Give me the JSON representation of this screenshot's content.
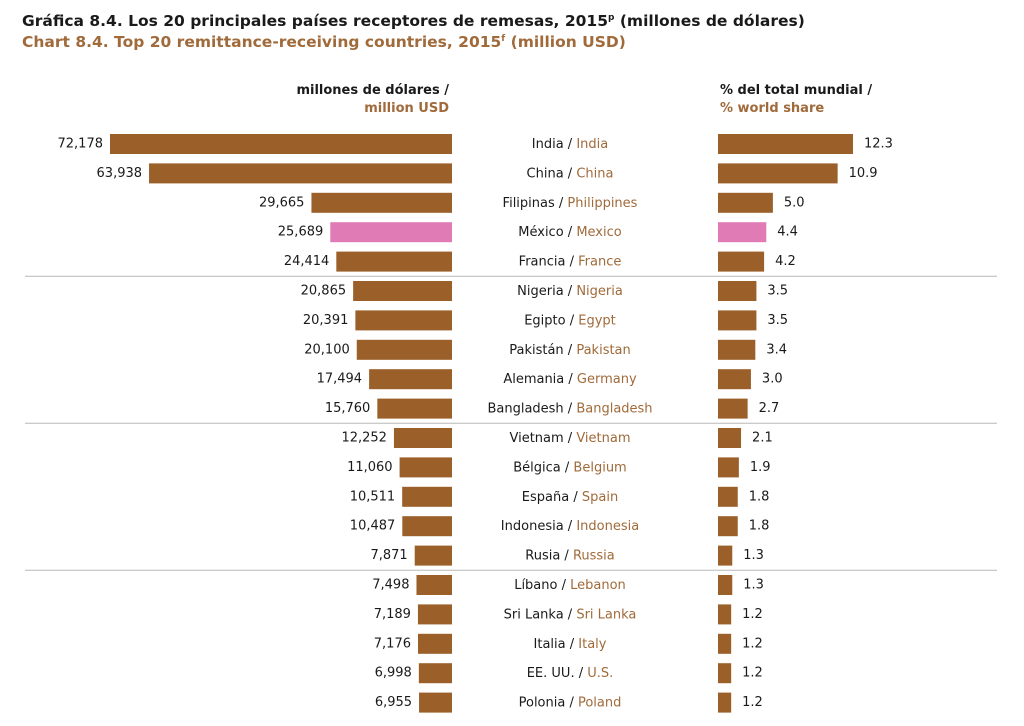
{
  "title_es": "Gráfica 8.4. Los 20 principales países receptores de remesas, 2015",
  "title_es_sup": "p",
  "title_es_suffix": " (millones de dólares)",
  "title_en": "Chart 8.4. Top 20 remittance-receiving countries, 2015",
  "title_en_sup": "f",
  "title_en_suffix": " (million USD)",
  "left_header": {
    "es": "millones de dólares /",
    "en": "million USD"
  },
  "right_header": {
    "es": "% del total mundial /",
    "en": "% world share"
  },
  "colors": {
    "bar": "#9b5f29",
    "highlight": "#e07bb5",
    "title_en": "#a06a3a",
    "divider": "#b8b8b8"
  },
  "chart_data": {
    "type": "bar",
    "orientation": "horizontal-butterfly",
    "group_dividers_after": [
      5,
      10,
      15
    ],
    "highlight": "México / Mexico",
    "series": [
      {
        "name": "millones de dólares / million USD"
      },
      {
        "name": "% del total mundial / % world share"
      }
    ],
    "rows": [
      {
        "es": "India",
        "en": "India",
        "usd": 72178,
        "usd_label": "72,178",
        "share": 12.3,
        "share_label": "12.3"
      },
      {
        "es": "China",
        "en": "China",
        "usd": 63938,
        "usd_label": "63,938",
        "share": 10.9,
        "share_label": "10.9"
      },
      {
        "es": "Filipinas",
        "en": "Philippines",
        "usd": 29665,
        "usd_label": "29,665",
        "share": 5.0,
        "share_label": "5.0"
      },
      {
        "es": "México",
        "en": "Mexico",
        "usd": 25689,
        "usd_label": "25,689",
        "share": 4.4,
        "share_label": "4.4",
        "highlight": true
      },
      {
        "es": "Francia",
        "en": "France",
        "usd": 24414,
        "usd_label": "24,414",
        "share": 4.2,
        "share_label": "4.2"
      },
      {
        "es": "Nigeria",
        "en": "Nigeria",
        "usd": 20865,
        "usd_label": "20,865",
        "share": 3.5,
        "share_label": "3.5"
      },
      {
        "es": "Egipto",
        "en": "Egypt",
        "usd": 20391,
        "usd_label": "20,391",
        "share": 3.5,
        "share_label": "3.5"
      },
      {
        "es": "Pakistán",
        "en": "Pakistan",
        "usd": 20100,
        "usd_label": "20,100",
        "share": 3.4,
        "share_label": "3.4"
      },
      {
        "es": "Alemania",
        "en": "Germany",
        "usd": 17494,
        "usd_label": "17,494",
        "share": 3.0,
        "share_label": "3.0"
      },
      {
        "es": "Bangladesh",
        "en": "Bangladesh",
        "usd": 15760,
        "usd_label": "15,760",
        "share": 2.7,
        "share_label": "2.7"
      },
      {
        "es": "Vietnam",
        "en": "Vietnam",
        "usd": 12252,
        "usd_label": "12,252",
        "share": 2.1,
        "share_label": "2.1"
      },
      {
        "es": "Bélgica",
        "en": "Belgium",
        "usd": 11060,
        "usd_label": "11,060",
        "share": 1.9,
        "share_label": "1.9"
      },
      {
        "es": "España",
        "en": "Spain",
        "usd": 10511,
        "usd_label": "10,511",
        "share": 1.8,
        "share_label": "1.8"
      },
      {
        "es": "Indonesia",
        "en": "Indonesia",
        "usd": 10487,
        "usd_label": "10,487",
        "share": 1.8,
        "share_label": "1.8"
      },
      {
        "es": "Rusia",
        "en": "Russia",
        "usd": 7871,
        "usd_label": "7,871",
        "share": 1.3,
        "share_label": "1.3"
      },
      {
        "es": "Líbano",
        "en": "Lebanon",
        "usd": 7498,
        "usd_label": "7,498",
        "share": 1.3,
        "share_label": "1.3"
      },
      {
        "es": "Sri Lanka",
        "en": "Sri Lanka",
        "usd": 7189,
        "usd_label": "7,189",
        "share": 1.2,
        "share_label": "1.2"
      },
      {
        "es": "Italia",
        "en": "Italy",
        "usd": 7176,
        "usd_label": "7,176",
        "share": 1.2,
        "share_label": "1.2"
      },
      {
        "es": "EE. UU.",
        "en": "U.S.",
        "usd": 6998,
        "usd_label": "6,998",
        "share": 1.2,
        "share_label": "1.2"
      },
      {
        "es": "Polonia",
        "en": "Poland",
        "usd": 6955,
        "usd_label": "6,955",
        "share": 1.2,
        "share_label": "1.2"
      }
    ]
  }
}
